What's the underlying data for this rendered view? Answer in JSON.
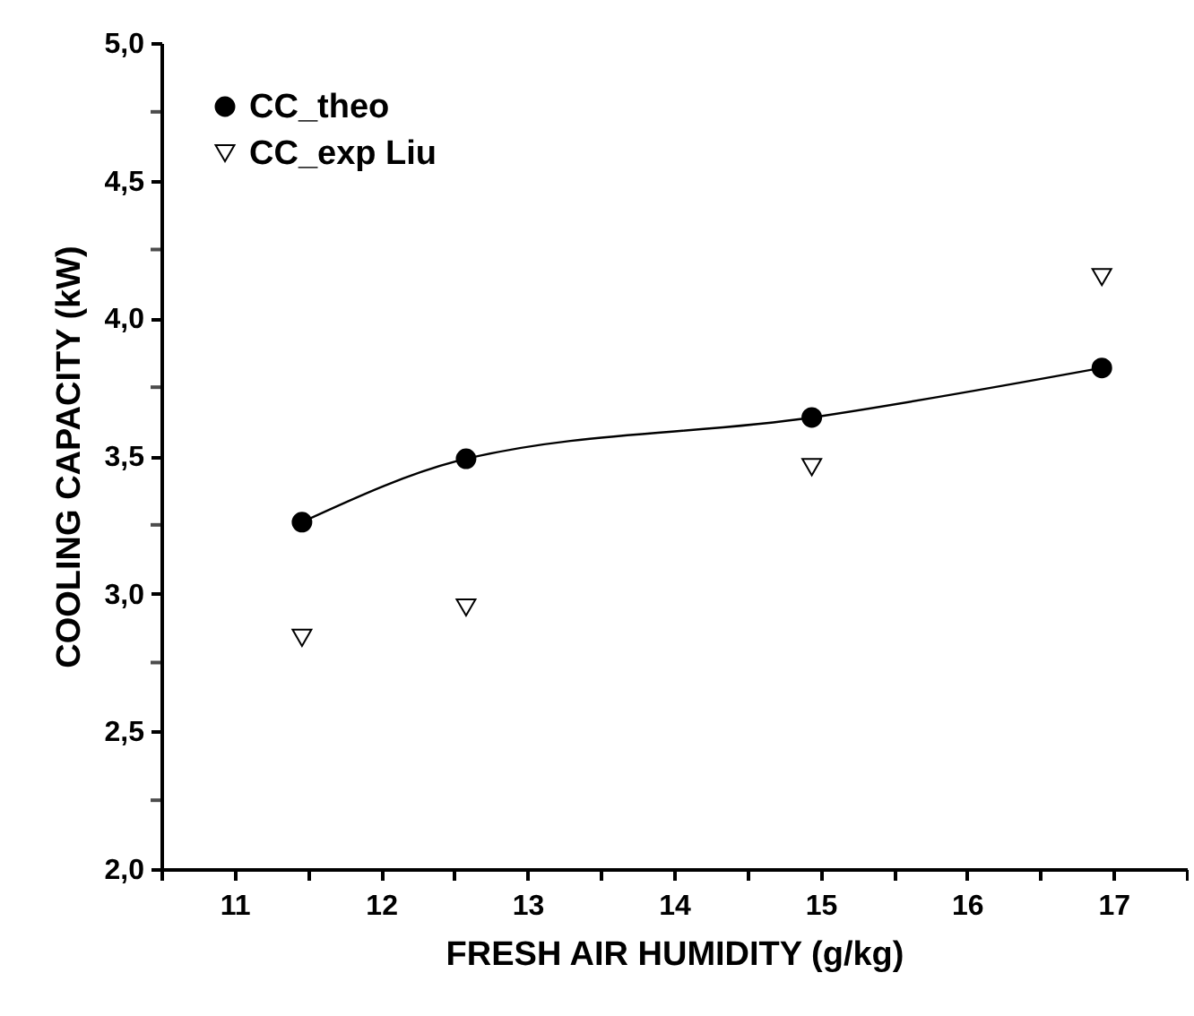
{
  "chart_data": {
    "type": "line",
    "xlabel": "FRESH AIR HUMIDITY (g/kg)",
    "ylabel": "COOLING CAPACITY (kW)",
    "x": [
      11.46,
      12.58,
      14.94,
      16.92
    ],
    "series": [
      {
        "name": "CC_theo",
        "marker": "circle",
        "color": "#000000",
        "values": [
          3.26,
          3.49,
          3.64,
          3.82
        ]
      },
      {
        "name": "CC_exp Liu",
        "type": "scatter",
        "marker": "triangle",
        "color": "#000000",
        "values": [
          2.84,
          2.95,
          3.46,
          4.15
        ]
      }
    ],
    "xlim": [
      10.5,
      17.5
    ],
    "xticks": [
      {
        "value": 10.5,
        "label": null
      },
      11,
      {
        "value": 11.5,
        "label": null
      },
      12,
      {
        "value": 12.5,
        "label": null
      },
      13,
      {
        "value": 13.5,
        "label": null
      },
      14,
      {
        "value": 14.5,
        "label": null
      },
      15,
      {
        "value": 15.5,
        "label": null
      },
      16,
      {
        "value": 16.5,
        "label": null
      },
      17,
      {
        "value": 17.5,
        "label": null
      }
    ],
    "ylim": [
      2.0,
      5.0
    ],
    "yticks": [
      {
        "value": 2.0,
        "label": "2,0"
      },
      {
        "value": 2.25,
        "label": null
      },
      {
        "value": 2.5,
        "label": "2,5"
      },
      {
        "value": 2.75,
        "label": null
      },
      {
        "value": 3.0,
        "label": "3,0"
      },
      {
        "value": 3.25,
        "label": null
      },
      {
        "value": 3.5,
        "label": "3,5"
      },
      {
        "value": 3.75,
        "label": null
      },
      {
        "value": 4.0,
        "label": "4,0"
      },
      {
        "value": 4.25,
        "label": null
      },
      {
        "value": 4.5,
        "label": "4,5"
      },
      {
        "value": 4.75,
        "label": null
      },
      {
        "value": 5.0,
        "label": "5,0"
      }
    ],
    "grid": false,
    "legend": "top left"
  }
}
